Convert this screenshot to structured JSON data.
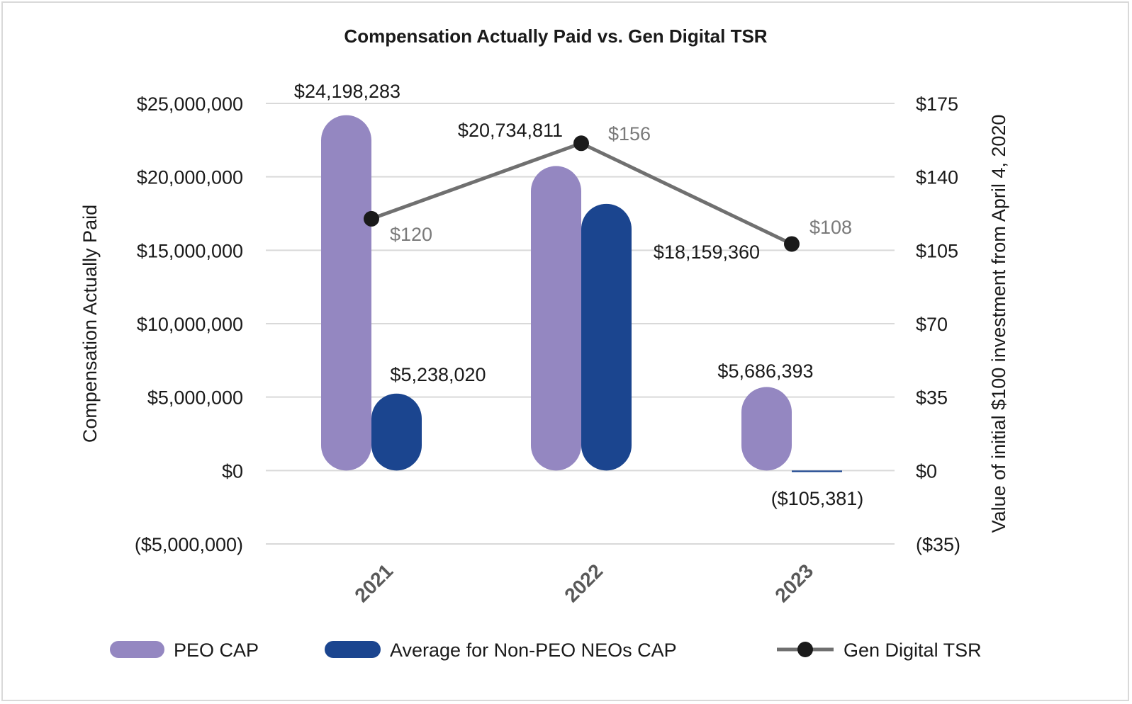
{
  "chart_data": {
    "type": "bar",
    "title": "Compensation Actually Paid vs. Gen Digital TSR",
    "categories": [
      "2021",
      "2022",
      "2023"
    ],
    "ylabel": "Compensation Actually Paid",
    "ylabel_right": "Value of initial $100 investment from April 4, 2020",
    "ylim": [
      -5000000,
      25000000
    ],
    "ylim_right": [
      -35,
      175
    ],
    "yticks": [
      "($5,000,000)",
      "$0",
      "$5,000,000",
      "$10,000,000",
      "$15,000,000",
      "$20,000,000",
      "$25,000,000"
    ],
    "yticks_right": [
      "($35)",
      "$0",
      "$35",
      "$70",
      "$105",
      "$140",
      "$175"
    ],
    "grid": true,
    "legend_position": "bottom",
    "series": [
      {
        "name": "PEO CAP",
        "kind": "bar",
        "axis": "left",
        "color": "#9487C1",
        "values": [
          24198283,
          20734811,
          5686393
        ],
        "labels": [
          "$24,198,283",
          "$20,734,811",
          "$5,686,393"
        ]
      },
      {
        "name": "Average for Non-PEO NEOs CAP",
        "kind": "bar",
        "axis": "left",
        "color": "#1B458F",
        "values": [
          5238020,
          18159360,
          -105381
        ],
        "labels": [
          "$5,238,020",
          "$18,159,360",
          "($105,381)"
        ]
      },
      {
        "name": "Gen Digital TSR",
        "kind": "line",
        "axis": "right",
        "color": "#707070",
        "marker_color": "#1a1a1a",
        "values": [
          120,
          156,
          108
        ],
        "labels": [
          "$120",
          "$156",
          "$108"
        ]
      }
    ]
  }
}
